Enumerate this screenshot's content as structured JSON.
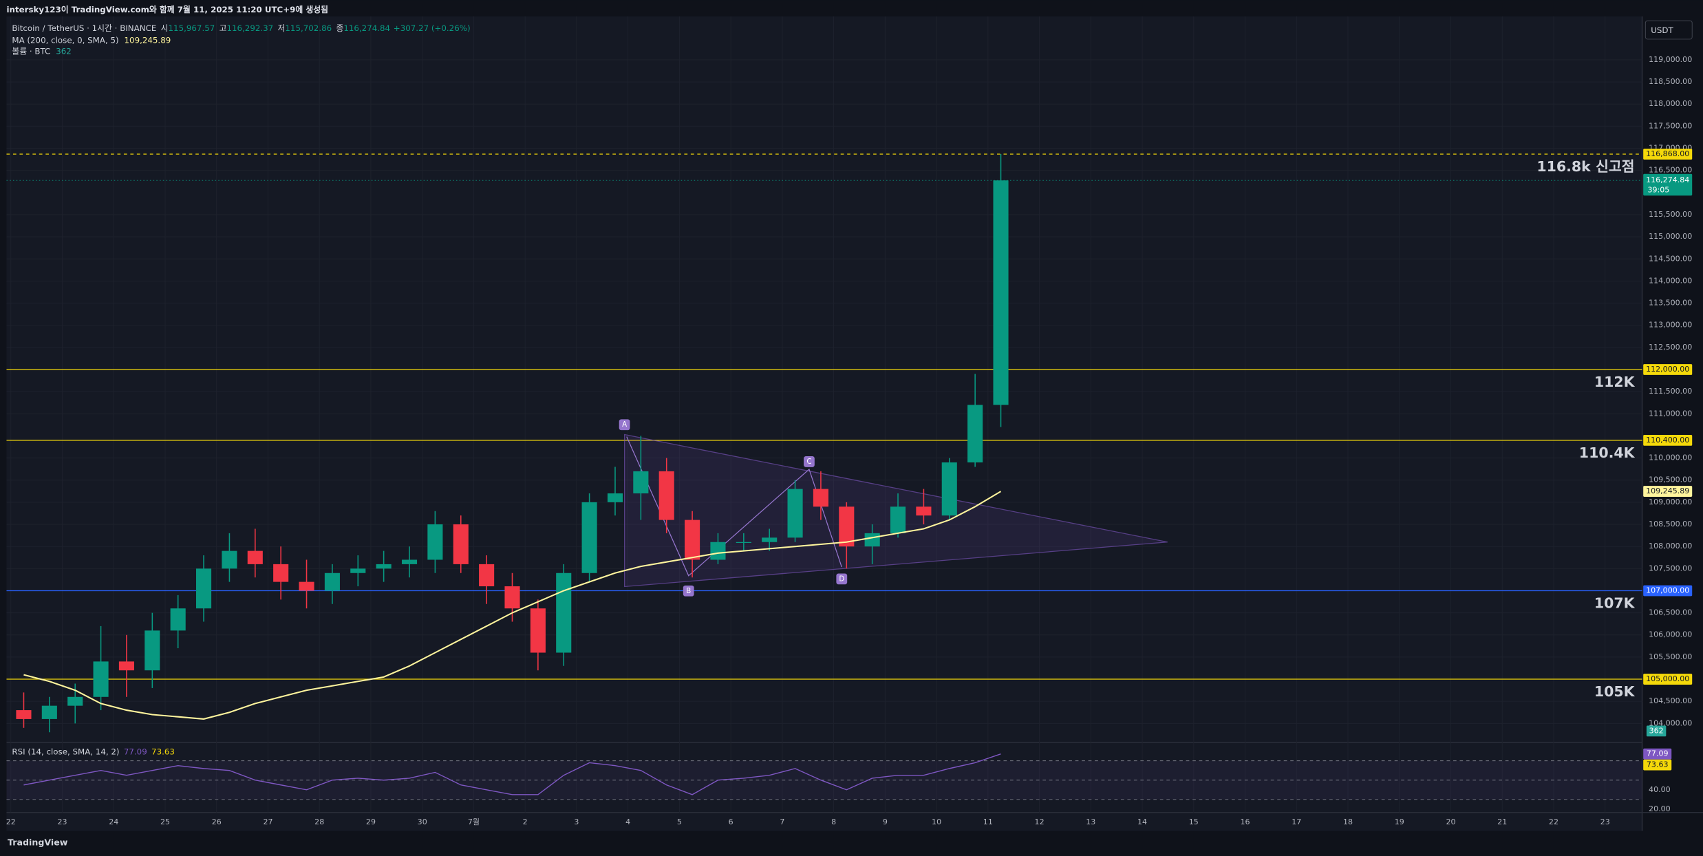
{
  "header": {
    "caption": "intersky123이 TradingView.com와 함께 7월 11, 2025 11:20 UTC+9에 생성됨",
    "symbol": "Bitcoin / TetherUS · 1시간 · BINANCE",
    "ohlc": [
      {
        "label": "시",
        "value": "115,967.57"
      },
      {
        "label": "고",
        "value": "116,292.37"
      },
      {
        "label": "저",
        "value": "115,702.86"
      },
      {
        "label": "종",
        "value": "116,274.84"
      }
    ],
    "change": "+307.27 (+0.26%)",
    "ma_legend": "MA (200, close, 0, SMA, 5)",
    "ma_value": "109,245.89",
    "volume_legend": "볼륨 · BTC",
    "volume_value": "362",
    "currency": "USDT",
    "footer": "TradingView"
  },
  "chart_data": {
    "type": "candlestick",
    "up_color": "#089981",
    "down_color": "#f23645",
    "ohlc": [
      [
        104300,
        104700,
        103900,
        104100
      ],
      [
        104100,
        104600,
        103800,
        104400
      ],
      [
        104400,
        104900,
        104000,
        104600
      ],
      [
        104600,
        106200,
        104300,
        105400
      ],
      [
        105400,
        106000,
        104600,
        105200
      ],
      [
        105200,
        106500,
        104800,
        106100
      ],
      [
        106100,
        106900,
        105700,
        106600
      ],
      [
        106600,
        107800,
        106300,
        107500
      ],
      [
        107500,
        108300,
        107200,
        107900
      ],
      [
        107900,
        108400,
        107300,
        107600
      ],
      [
        107600,
        108000,
        106800,
        107200
      ],
      [
        107200,
        107700,
        106600,
        107000
      ],
      [
        107000,
        107600,
        106700,
        107400
      ],
      [
        107400,
        107800,
        107100,
        107500
      ],
      [
        107500,
        107900,
        107200,
        107600
      ],
      [
        107600,
        108000,
        107300,
        107700
      ],
      [
        107700,
        108800,
        107400,
        108500
      ],
      [
        108500,
        108700,
        107400,
        107600
      ],
      [
        107600,
        107800,
        106700,
        107100
      ],
      [
        107100,
        107400,
        106300,
        106600
      ],
      [
        106600,
        106800,
        105200,
        105600
      ],
      [
        105600,
        107600,
        105300,
        107400
      ],
      [
        107400,
        109200,
        107200,
        109000
      ],
      [
        109000,
        109800,
        108700,
        109200
      ],
      [
        109200,
        110500,
        108600,
        109700
      ],
      [
        109700,
        110000,
        108300,
        108600
      ],
      [
        108600,
        108800,
        107300,
        107700
      ],
      [
        107700,
        108300,
        107600,
        108100
      ],
      [
        108100,
        108300,
        107900,
        108100
      ],
      [
        108100,
        108400,
        107900,
        108200
      ],
      [
        108200,
        109500,
        108100,
        109300
      ],
      [
        109300,
        109700,
        108600,
        108900
      ],
      [
        108900,
        109000,
        107500,
        108000
      ],
      [
        108000,
        108500,
        107600,
        108300
      ],
      [
        108300,
        109200,
        108200,
        108900
      ],
      [
        108900,
        109300,
        108500,
        108700
      ],
      [
        108700,
        110000,
        108600,
        109900
      ],
      [
        109900,
        111900,
        109800,
        111200
      ],
      [
        111200,
        116868,
        110700,
        116274.84
      ]
    ],
    "ma": {
      "color": "#fff59d",
      "values": [
        105100,
        104950,
        104750,
        104450,
        104300,
        104200,
        104150,
        104100,
        104250,
        104450,
        104600,
        104750,
        104850,
        104950,
        105050,
        105300,
        105600,
        105900,
        106200,
        106500,
        106750,
        107000,
        107200,
        107400,
        107550,
        107650,
        107750,
        107850,
        107900,
        107950,
        108000,
        108050,
        108100,
        108200,
        108300,
        108400,
        108600,
        108900,
        109245.89
      ]
    },
    "ylim": [
      103600,
      120000
    ],
    "yticks": [
      {
        "value": 119000,
        "label": "119,000.00"
      },
      {
        "value": 118500,
        "label": "118,500.00"
      },
      {
        "value": 118000,
        "label": "118,000.00"
      },
      {
        "value": 117500,
        "label": "117,500.00"
      },
      {
        "value": 117000,
        "label": "117,000.00"
      },
      {
        "value": 116500,
        "label": "116,500.00"
      },
      {
        "value": 115500,
        "label": "115,500.00"
      },
      {
        "value": 115000,
        "label": "115,000.00"
      },
      {
        "value": 114500,
        "label": "114,500.00"
      },
      {
        "value": 114000,
        "label": "114,000.00"
      },
      {
        "value": 113500,
        "label": "113,500.00"
      },
      {
        "value": 113000,
        "label": "113,000.00"
      },
      {
        "value": 112500,
        "label": "112,500.00"
      },
      {
        "value": 111500,
        "label": "111,500.00"
      },
      {
        "value": 111000,
        "label": "111,000.00"
      },
      {
        "value": 110000,
        "label": "110,000.00"
      },
      {
        "value": 109500,
        "label": "109,500.00"
      },
      {
        "value": 109000,
        "label": "109,000.00"
      },
      {
        "value": 108500,
        "label": "108,500.00"
      },
      {
        "value": 108000,
        "label": "108,000.00"
      },
      {
        "value": 107500,
        "label": "107,500.00"
      },
      {
        "value": 106500,
        "label": "106,500.00"
      },
      {
        "value": 106000,
        "label": "106,000.00"
      },
      {
        "value": 105500,
        "label": "105,500.00"
      },
      {
        "value": 104500,
        "label": "104,500.00"
      },
      {
        "value": 104000,
        "label": "104,000.00"
      }
    ],
    "levels": [
      {
        "value": 116868,
        "label": "116,868.00",
        "name": "116.8k 신고점",
        "color": "#f5d90a",
        "dashed": true
      },
      {
        "value": 112000,
        "label": "112,000.00",
        "name": "112K",
        "color": "#f5d90a",
        "dashed": false
      },
      {
        "value": 110400,
        "label": "110,400.00",
        "name": "110.4K",
        "color": "#f5d90a",
        "dashed": false
      },
      {
        "value": 107000,
        "label": "107,000.00",
        "name": "107K",
        "color": "#2962ff",
        "dashed": false
      },
      {
        "value": 105000,
        "label": "105,000.00",
        "name": "105K",
        "color": "#f5d90a",
        "dashed": false
      }
    ],
    "last_price": {
      "value": 116274.84,
      "label": "116,274.84"
    },
    "countdown": "39:05",
    "pattern_points": [
      "A",
      "B",
      "C",
      "D"
    ],
    "x_labels": [
      "22",
      "23",
      "24",
      "25",
      "26",
      "27",
      "28",
      "29",
      "30",
      "7월",
      "2",
      "3",
      "4",
      "5",
      "6",
      "7",
      "8",
      "9",
      "10",
      "11",
      "12",
      "13",
      "14",
      "15",
      "16",
      "17",
      "18",
      "19",
      "20",
      "21",
      "22",
      "23"
    ],
    "rsi": {
      "name": "RSI (14, close, SMA, 14, 2)",
      "color": "#7e57c2",
      "values": [
        45,
        50,
        55,
        60,
        55,
        60,
        65,
        62,
        60,
        50,
        45,
        40,
        50,
        52,
        50,
        52,
        58,
        45,
        40,
        35,
        35,
        55,
        68,
        65,
        60,
        45,
        35,
        50,
        52,
        55,
        62,
        50,
        40,
        52,
        55,
        55,
        62,
        68,
        77.09
      ],
      "last": {
        "value": 77.09,
        "label": "77.09"
      },
      "ma_last": {
        "value": 73.63,
        "label": "73.63"
      },
      "ma_color": "#f5d90a",
      "ylim": [
        16.5,
        89
      ],
      "yticks": [
        {
          "value": 40,
          "label": "40.00"
        },
        {
          "value": 20,
          "label": "20.00"
        }
      ],
      "levels": [
        70,
        50,
        30
      ]
    }
  }
}
